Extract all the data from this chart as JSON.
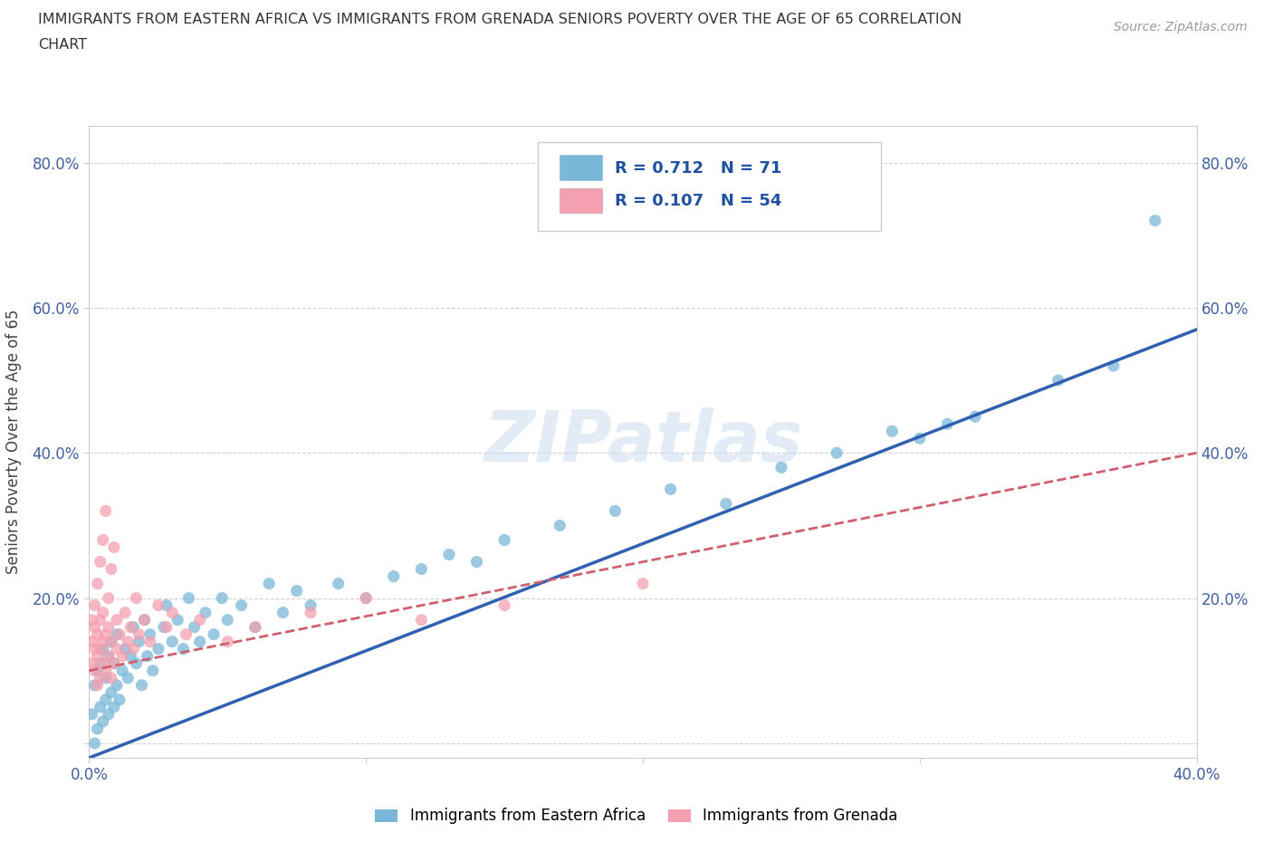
{
  "title_line1": "IMMIGRANTS FROM EASTERN AFRICA VS IMMIGRANTS FROM GRENADA SENIORS POVERTY OVER THE AGE OF 65 CORRELATION",
  "title_line2": "CHART",
  "source": "Source: ZipAtlas.com",
  "ylabel": "Seniors Poverty Over the Age of 65",
  "xmin": 0.0,
  "xmax": 0.4,
  "ymin": -0.02,
  "ymax": 0.85,
  "yticks": [
    0.0,
    0.2,
    0.4,
    0.6,
    0.8
  ],
  "xticks": [
    0.0,
    0.1,
    0.2,
    0.3,
    0.4
  ],
  "blue_color": "#7ab8d9",
  "pink_color": "#f4a0b0",
  "blue_line_color": "#3060b0",
  "pink_line_color": "#d06070",
  "R_blue": 0.712,
  "N_blue": 71,
  "R_pink": 0.107,
  "N_pink": 54,
  "watermark": "ZIPatlas",
  "legend_label_blue": "Immigrants from Eastern Africa",
  "legend_label_pink": "Immigrants from Grenada",
  "blue_scatter_x": [
    0.001,
    0.002,
    0.002,
    0.003,
    0.003,
    0.004,
    0.004,
    0.005,
    0.005,
    0.006,
    0.006,
    0.007,
    0.007,
    0.008,
    0.008,
    0.009,
    0.009,
    0.01,
    0.01,
    0.011,
    0.012,
    0.013,
    0.014,
    0.015,
    0.016,
    0.017,
    0.018,
    0.019,
    0.02,
    0.021,
    0.022,
    0.023,
    0.025,
    0.027,
    0.028,
    0.03,
    0.032,
    0.034,
    0.036,
    0.038,
    0.04,
    0.042,
    0.045,
    0.048,
    0.05,
    0.055,
    0.06,
    0.065,
    0.07,
    0.075,
    0.08,
    0.09,
    0.1,
    0.11,
    0.12,
    0.13,
    0.14,
    0.15,
    0.17,
    0.19,
    0.21,
    0.23,
    0.25,
    0.27,
    0.29,
    0.3,
    0.31,
    0.32,
    0.35,
    0.37,
    0.385
  ],
  "blue_scatter_y": [
    0.04,
    0.0,
    0.08,
    0.02,
    0.1,
    0.05,
    0.11,
    0.03,
    0.13,
    0.06,
    0.09,
    0.04,
    0.12,
    0.07,
    0.14,
    0.05,
    0.11,
    0.08,
    0.15,
    0.06,
    0.1,
    0.13,
    0.09,
    0.12,
    0.16,
    0.11,
    0.14,
    0.08,
    0.17,
    0.12,
    0.15,
    0.1,
    0.13,
    0.16,
    0.19,
    0.14,
    0.17,
    0.13,
    0.2,
    0.16,
    0.14,
    0.18,
    0.15,
    0.2,
    0.17,
    0.19,
    0.16,
    0.22,
    0.18,
    0.21,
    0.19,
    0.22,
    0.2,
    0.23,
    0.24,
    0.26,
    0.25,
    0.28,
    0.3,
    0.32,
    0.35,
    0.33,
    0.38,
    0.4,
    0.43,
    0.42,
    0.44,
    0.45,
    0.5,
    0.52,
    0.72
  ],
  "pink_scatter_x": [
    0.001,
    0.001,
    0.001,
    0.002,
    0.002,
    0.002,
    0.002,
    0.003,
    0.003,
    0.003,
    0.003,
    0.004,
    0.004,
    0.004,
    0.004,
    0.005,
    0.005,
    0.005,
    0.005,
    0.006,
    0.006,
    0.006,
    0.007,
    0.007,
    0.007,
    0.008,
    0.008,
    0.008,
    0.009,
    0.009,
    0.01,
    0.01,
    0.011,
    0.012,
    0.013,
    0.014,
    0.015,
    0.016,
    0.017,
    0.018,
    0.02,
    0.022,
    0.025,
    0.028,
    0.03,
    0.035,
    0.04,
    0.05,
    0.06,
    0.08,
    0.1,
    0.12,
    0.15,
    0.2
  ],
  "pink_scatter_y": [
    0.14,
    0.11,
    0.17,
    0.1,
    0.13,
    0.16,
    0.19,
    0.08,
    0.12,
    0.15,
    0.22,
    0.09,
    0.13,
    0.17,
    0.25,
    0.11,
    0.14,
    0.18,
    0.28,
    0.1,
    0.15,
    0.32,
    0.12,
    0.16,
    0.2,
    0.09,
    0.14,
    0.24,
    0.11,
    0.27,
    0.13,
    0.17,
    0.15,
    0.12,
    0.18,
    0.14,
    0.16,
    0.13,
    0.2,
    0.15,
    0.17,
    0.14,
    0.19,
    0.16,
    0.18,
    0.15,
    0.17,
    0.14,
    0.16,
    0.18,
    0.2,
    0.17,
    0.19,
    0.22
  ],
  "background_color": "#ffffff",
  "grid_color": "#cccccc"
}
